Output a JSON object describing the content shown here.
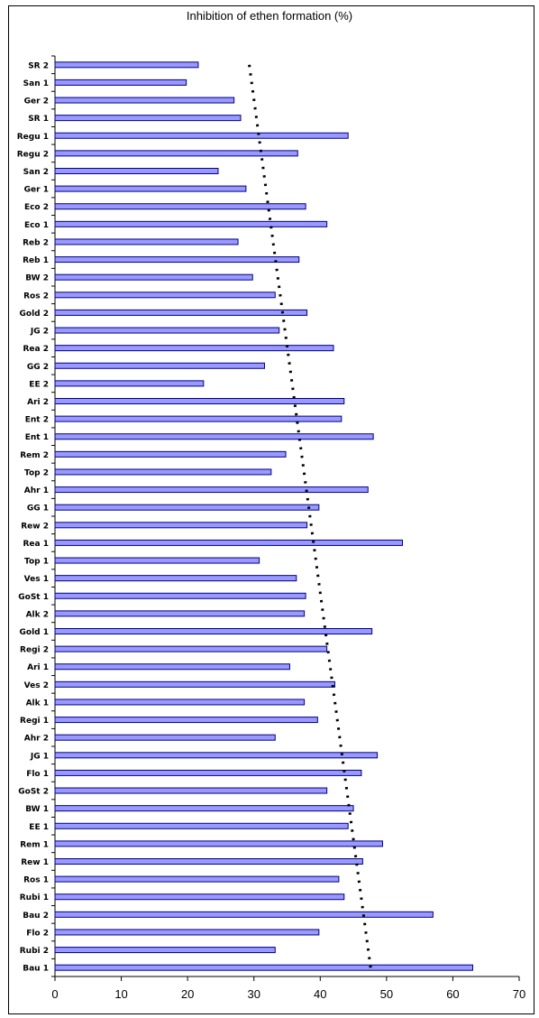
{
  "chart_data": {
    "type": "bar",
    "orientation": "horizontal",
    "title": "Inhibition of ethen formation (%)",
    "xlabel": "",
    "ylabel": "",
    "xlim": [
      0,
      70
    ],
    "x_ticks": [
      "0",
      "10",
      "20",
      "30",
      "40",
      "50",
      "60",
      "70"
    ],
    "grid": false,
    "legend": "none",
    "bar_color": "#9999ff",
    "bar_border": "#000080",
    "trendline": {
      "style": "dotted",
      "color": "#000000",
      "from": 29.3,
      "to": 47.6
    },
    "categories": [
      "SR 2",
      "San 1",
      "Ger 2",
      "SR 1",
      "Regu 1",
      "Regu 2",
      "San 2",
      "Ger 1",
      "Eco 2",
      "Eco 1",
      "Reb 2",
      "Reb 1",
      "BW 2",
      "Ros 2",
      "Gold 2",
      "JG 2",
      "Rea 2",
      "GG 2",
      "EE 2",
      "Ari 2",
      "Ent 2",
      "Ent 1",
      "Rem 2",
      "Top 2",
      "Ahr 1",
      "GG 1",
      "Rew 2",
      "Rea 1",
      "Top 1",
      "Ves 1",
      "GoSt 1",
      "Alk 2",
      "Gold 1",
      "Regi 2",
      "Ari 1",
      "Ves 2",
      "Alk 1",
      "Regi 1",
      "Ahr 2",
      "JG 1",
      "Flo 1",
      "GoSt 2",
      "BW 1",
      "EE 1",
      "Rem 1",
      "Rew 1",
      "Ros 1",
      "Rubi 1",
      "Bau 2",
      "Flo 2",
      "Rubi 2",
      "Bau 1"
    ],
    "values": [
      21.6,
      19.8,
      27.0,
      28.0,
      44.2,
      36.6,
      24.6,
      28.8,
      37.8,
      41.0,
      27.6,
      36.8,
      29.8,
      33.2,
      38.0,
      33.8,
      42.0,
      31.6,
      22.4,
      43.6,
      43.2,
      48.0,
      34.8,
      32.6,
      47.2,
      39.8,
      38.0,
      52.4,
      30.8,
      36.4,
      37.8,
      37.6,
      47.8,
      41.0,
      35.4,
      42.2,
      37.6,
      39.6,
      33.2,
      48.6,
      46.2,
      41.0,
      45.0,
      44.2,
      49.4,
      46.4,
      42.8,
      43.6,
      57.0,
      39.8,
      33.2,
      63.0
    ]
  }
}
